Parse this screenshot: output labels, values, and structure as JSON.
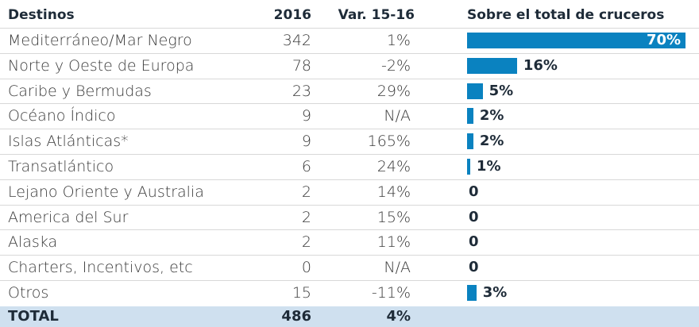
{
  "table": {
    "headers": [
      "Destinos",
      "2016",
      "Var. 15-16",
      "Sobre el total de cruceros"
    ],
    "rows": [
      {
        "destino": "Mediterráneo/Mar Negro",
        "n2016": 342,
        "var": "1%",
        "share": 70,
        "share_label": "70%"
      },
      {
        "destino": "Norte y Oeste de Europa",
        "n2016": 78,
        "var": "-2%",
        "share": 16,
        "share_label": "16%"
      },
      {
        "destino": "Caribe y Bermudas",
        "n2016": 23,
        "var": "29%",
        "share": 5,
        "share_label": "5%"
      },
      {
        "destino": "Océano Índico",
        "n2016": 9,
        "var": "N/A",
        "share": 2,
        "share_label": "2%"
      },
      {
        "destino": "Islas Atlánticas*",
        "n2016": 9,
        "var": "165%",
        "share": 2,
        "share_label": "2%"
      },
      {
        "destino": "Transatlántico",
        "n2016": 6,
        "var": "24%",
        "share": 1,
        "share_label": "1%"
      },
      {
        "destino": "Lejano Oriente y Australia",
        "n2016": 2,
        "var": "14%",
        "share": 0,
        "share_label": "0"
      },
      {
        "destino": "America del Sur",
        "n2016": 2,
        "var": "15%",
        "share": 0,
        "share_label": "0"
      },
      {
        "destino": "Alaska",
        "n2016": 2,
        "var": "11%",
        "share": 0,
        "share_label": "0"
      },
      {
        "destino": "Charters, Incentivos, etc",
        "n2016": 0,
        "var": "N/A",
        "share": 0,
        "share_label": "0"
      },
      {
        "destino": "Otros",
        "n2016": 15,
        "var": "-11%",
        "share": 3,
        "share_label": "3%"
      }
    ],
    "total": {
      "destino": "TOTAL",
      "n2016": 486,
      "var": "4%"
    }
  }
}
